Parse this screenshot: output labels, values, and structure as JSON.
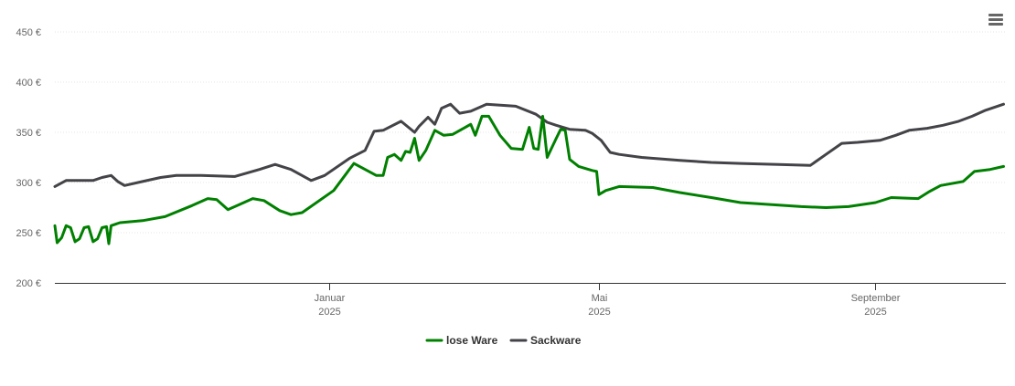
{
  "chart_data": {
    "type": "line",
    "title": "",
    "xlabel": "",
    "ylabel": "",
    "ylim": [
      200,
      450
    ],
    "xlim": [
      "2024-09-01",
      "2025-10-29"
    ],
    "grid": true,
    "legend": "bottom-center",
    "y_ticks": [
      {
        "value": 200,
        "label": "200 €"
      },
      {
        "value": 250,
        "label": "250 €"
      },
      {
        "value": 300,
        "label": "300 €"
      },
      {
        "value": 350,
        "label": "350 €"
      },
      {
        "value": 400,
        "label": "400 €"
      },
      {
        "value": 450,
        "label": "450 €"
      }
    ],
    "x_ticks": [
      {
        "date": "2025-01-01",
        "label": "Januar",
        "sublabel": "2025"
      },
      {
        "date": "2025-05-01",
        "label": "Mai",
        "sublabel": "2025"
      },
      {
        "date": "2025-09-01",
        "label": "September",
        "sublabel": "2025"
      }
    ],
    "series": [
      {
        "name": "lose Ware",
        "color": "#008000",
        "points": [
          [
            "2024-09-01",
            257
          ],
          [
            "2024-09-02",
            240
          ],
          [
            "2024-09-04",
            245
          ],
          [
            "2024-09-06",
            257
          ],
          [
            "2024-09-08",
            255
          ],
          [
            "2024-09-10",
            241
          ],
          [
            "2024-09-12",
            244
          ],
          [
            "2024-09-14",
            255
          ],
          [
            "2024-09-16",
            256
          ],
          [
            "2024-09-18",
            241
          ],
          [
            "2024-09-20",
            244
          ],
          [
            "2024-09-22",
            255
          ],
          [
            "2024-09-24",
            256
          ],
          [
            "2024-09-25",
            239
          ],
          [
            "2024-09-26",
            257
          ],
          [
            "2024-09-30",
            260
          ],
          [
            "2024-10-10",
            262
          ],
          [
            "2024-10-20",
            266
          ],
          [
            "2024-11-01",
            277
          ],
          [
            "2024-11-08",
            284
          ],
          [
            "2024-11-12",
            283
          ],
          [
            "2024-11-17",
            273
          ],
          [
            "2024-11-22",
            278
          ],
          [
            "2024-11-28",
            284
          ],
          [
            "2024-12-03",
            282
          ],
          [
            "2024-12-10",
            272
          ],
          [
            "2024-12-15",
            268
          ],
          [
            "2024-12-20",
            270
          ],
          [
            "2025-01-03",
            292
          ],
          [
            "2025-01-12",
            319
          ],
          [
            "2025-01-22",
            307
          ],
          [
            "2025-01-25",
            307
          ],
          [
            "2025-01-27",
            325
          ],
          [
            "2025-01-30",
            328
          ],
          [
            "2025-02-02",
            322
          ],
          [
            "2025-02-04",
            331
          ],
          [
            "2025-02-06",
            330
          ],
          [
            "2025-02-08",
            344
          ],
          [
            "2025-02-10",
            322
          ],
          [
            "2025-02-13",
            332
          ],
          [
            "2025-02-17",
            352
          ],
          [
            "2025-02-21",
            347
          ],
          [
            "2025-02-25",
            348
          ],
          [
            "2025-03-01",
            353
          ],
          [
            "2025-03-05",
            358
          ],
          [
            "2025-03-07",
            347
          ],
          [
            "2025-03-10",
            366
          ],
          [
            "2025-03-13",
            366
          ],
          [
            "2025-03-18",
            347
          ],
          [
            "2025-03-23",
            334
          ],
          [
            "2025-03-28",
            333
          ],
          [
            "2025-03-31",
            355
          ],
          [
            "2025-04-02",
            334
          ],
          [
            "2025-04-04",
            333
          ],
          [
            "2025-04-06",
            366
          ],
          [
            "2025-04-08",
            325
          ],
          [
            "2025-04-12",
            344
          ],
          [
            "2025-04-14",
            353
          ],
          [
            "2025-04-16",
            352
          ],
          [
            "2025-04-18",
            323
          ],
          [
            "2025-04-22",
            316
          ],
          [
            "2025-04-28",
            312
          ],
          [
            "2025-04-30",
            311
          ],
          [
            "2025-05-01",
            288
          ],
          [
            "2025-05-04",
            292
          ],
          [
            "2025-05-10",
            296
          ],
          [
            "2025-05-25",
            295
          ],
          [
            "2025-06-06",
            290
          ],
          [
            "2025-06-20",
            285
          ],
          [
            "2025-07-03",
            280
          ],
          [
            "2025-07-30",
            276
          ],
          [
            "2025-08-10",
            275
          ],
          [
            "2025-08-20",
            276
          ],
          [
            "2025-09-01",
            280
          ],
          [
            "2025-09-08",
            285
          ],
          [
            "2025-09-20",
            284
          ],
          [
            "2025-09-25",
            291
          ],
          [
            "2025-09-30",
            297
          ],
          [
            "2025-10-10",
            301
          ],
          [
            "2025-10-15",
            311
          ],
          [
            "2025-10-22",
            313
          ],
          [
            "2025-10-28",
            316
          ]
        ]
      },
      {
        "name": "Sackware",
        "color": "#434348",
        "points": [
          [
            "2024-09-01",
            296
          ],
          [
            "2024-09-06",
            302
          ],
          [
            "2024-09-18",
            302
          ],
          [
            "2024-09-22",
            305
          ],
          [
            "2024-09-26",
            307
          ],
          [
            "2024-09-29",
            301
          ],
          [
            "2024-10-02",
            297
          ],
          [
            "2024-10-10",
            301
          ],
          [
            "2024-10-18",
            305
          ],
          [
            "2024-10-25",
            307
          ],
          [
            "2024-11-05",
            307
          ],
          [
            "2024-11-20",
            306
          ],
          [
            "2024-12-01",
            313
          ],
          [
            "2024-12-08",
            318
          ],
          [
            "2024-12-15",
            313
          ],
          [
            "2024-12-24",
            302
          ],
          [
            "2024-12-30",
            307
          ],
          [
            "2025-01-10",
            324
          ],
          [
            "2025-01-17",
            332
          ],
          [
            "2025-01-21",
            351
          ],
          [
            "2025-01-25",
            352
          ],
          [
            "2025-02-02",
            361
          ],
          [
            "2025-02-08",
            350
          ],
          [
            "2025-02-10",
            356
          ],
          [
            "2025-02-14",
            365
          ],
          [
            "2025-02-17",
            358
          ],
          [
            "2025-02-20",
            374
          ],
          [
            "2025-02-24",
            378
          ],
          [
            "2025-02-28",
            369
          ],
          [
            "2025-03-05",
            371
          ],
          [
            "2025-03-12",
            378
          ],
          [
            "2025-03-25",
            376
          ],
          [
            "2025-04-03",
            368
          ],
          [
            "2025-04-08",
            360
          ],
          [
            "2025-04-12",
            357
          ],
          [
            "2025-04-18",
            353
          ],
          [
            "2025-04-25",
            352
          ],
          [
            "2025-04-28",
            349
          ],
          [
            "2025-05-02",
            342
          ],
          [
            "2025-05-06",
            330
          ],
          [
            "2025-05-10",
            328
          ],
          [
            "2025-05-20",
            325
          ],
          [
            "2025-06-06",
            322
          ],
          [
            "2025-06-20",
            320
          ],
          [
            "2025-07-03",
            319
          ],
          [
            "2025-07-20",
            318
          ],
          [
            "2025-08-03",
            317
          ],
          [
            "2025-08-10",
            328
          ],
          [
            "2025-08-17",
            339
          ],
          [
            "2025-08-24",
            340
          ],
          [
            "2025-09-03",
            342
          ],
          [
            "2025-09-10",
            347
          ],
          [
            "2025-09-16",
            352
          ],
          [
            "2025-09-24",
            354
          ],
          [
            "2025-10-01",
            357
          ],
          [
            "2025-10-08",
            361
          ],
          [
            "2025-10-14",
            366
          ],
          [
            "2025-10-20",
            372
          ],
          [
            "2025-10-28",
            378
          ]
        ]
      }
    ]
  },
  "ui": {
    "menu_icon": "hamburger-menu-icon"
  }
}
